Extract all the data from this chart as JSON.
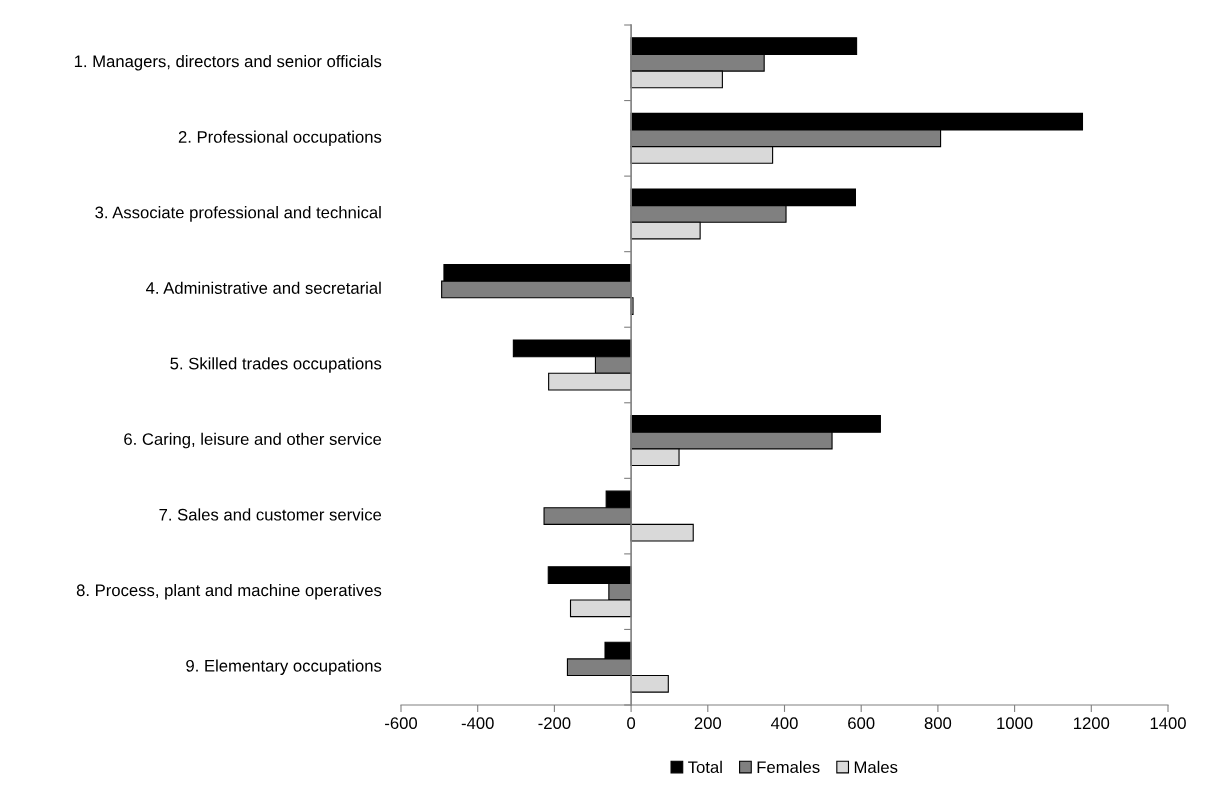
{
  "chart_data": {
    "type": "bar",
    "orientation": "horizontal",
    "categories": [
      "1. Managers, directors and senior officials",
      "2. Professional occupations",
      "3. Associate professional and technical",
      "4. Administrative and secretarial",
      "5. Skilled trades occupations",
      "6. Caring, leisure and other service",
      "7. Sales and customer service",
      "8. Process, plant and machine operatives",
      "9. Elementary occupations"
    ],
    "series": [
      {
        "name": "Total",
        "color": "#000000",
        "values": [
          588,
          1177,
          585,
          -488,
          -307,
          650,
          -65,
          -216,
          -68
        ]
      },
      {
        "name": "Females",
        "color": "#808080",
        "values": [
          347,
          807,
          404,
          -494,
          -93,
          524,
          -227,
          -58,
          -166
        ]
      },
      {
        "name": "Males",
        "color": "#d9d9d9",
        "values": [
          238,
          369,
          180,
          5,
          -215,
          125,
          162,
          -158,
          97
        ]
      }
    ],
    "xlim": [
      -600,
      1400
    ],
    "xticks": [
      -600,
      -400,
      -200,
      0,
      200,
      400,
      600,
      800,
      1000,
      1200,
      1400
    ],
    "legend": "bottom"
  }
}
